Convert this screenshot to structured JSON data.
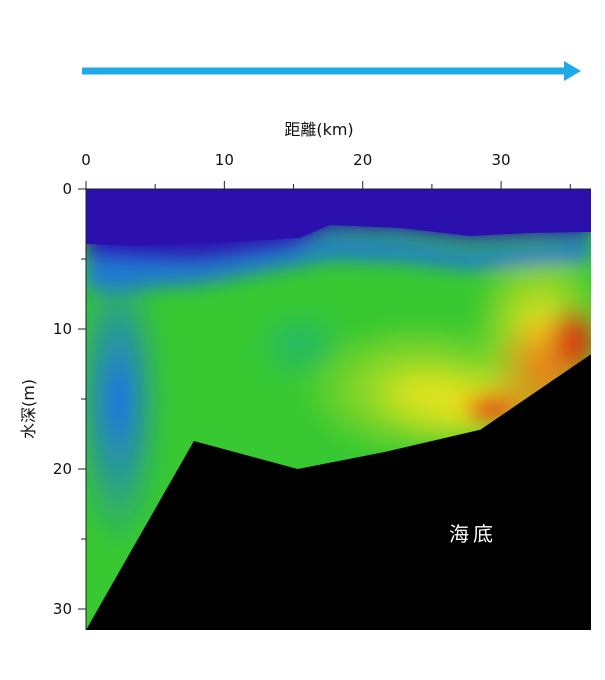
{
  "chart_data": {
    "type": "heatmap",
    "xlabel": "距離(km)",
    "ylabel": "水深(m)",
    "xlim": [
      0,
      36.5
    ],
    "ylim": [
      0,
      31.5
    ],
    "y_inverted": true,
    "x_axis_position": "top",
    "x_ticks": [
      0,
      10,
      20,
      30
    ],
    "x_tick_labels": [
      "0",
      "10",
      "20",
      "30"
    ],
    "x_minor_ticks": [
      5,
      15,
      25,
      35
    ],
    "y_ticks": [
      0,
      10,
      20,
      30
    ],
    "y_tick_labels": [
      "0",
      "10",
      "20",
      "30"
    ],
    "y_minor_ticks": [
      5,
      15,
      25
    ],
    "colormap": [
      "#2a12b0",
      "#1e7cf0",
      "#19c84a",
      "#8be01e",
      "#e8e41c",
      "#f07a18",
      "#e21812"
    ],
    "seabed_profile": {
      "distance_km": [
        0,
        7.8,
        15.3,
        21.5,
        28.5,
        36.5
      ],
      "depth_m": [
        31.5,
        18.0,
        20.0,
        18.8,
        17.2,
        11.8
      ]
    },
    "surface_layer_bottom": {
      "distance_km": [
        0,
        5,
        10,
        15,
        18,
        22,
        25,
        28,
        32,
        36.5
      ],
      "depth_m": [
        3.8,
        4.0,
        3.6,
        3.3,
        3.0,
        3.4,
        3.3,
        3.2,
        3.3,
        3.0
      ]
    },
    "warm_zone_note": "high values (yellow→red) near the seabed on the eastern (right) side, beyond ~22 km",
    "annotation": "海底",
    "direction_arrow_color": "#1eaae6"
  }
}
